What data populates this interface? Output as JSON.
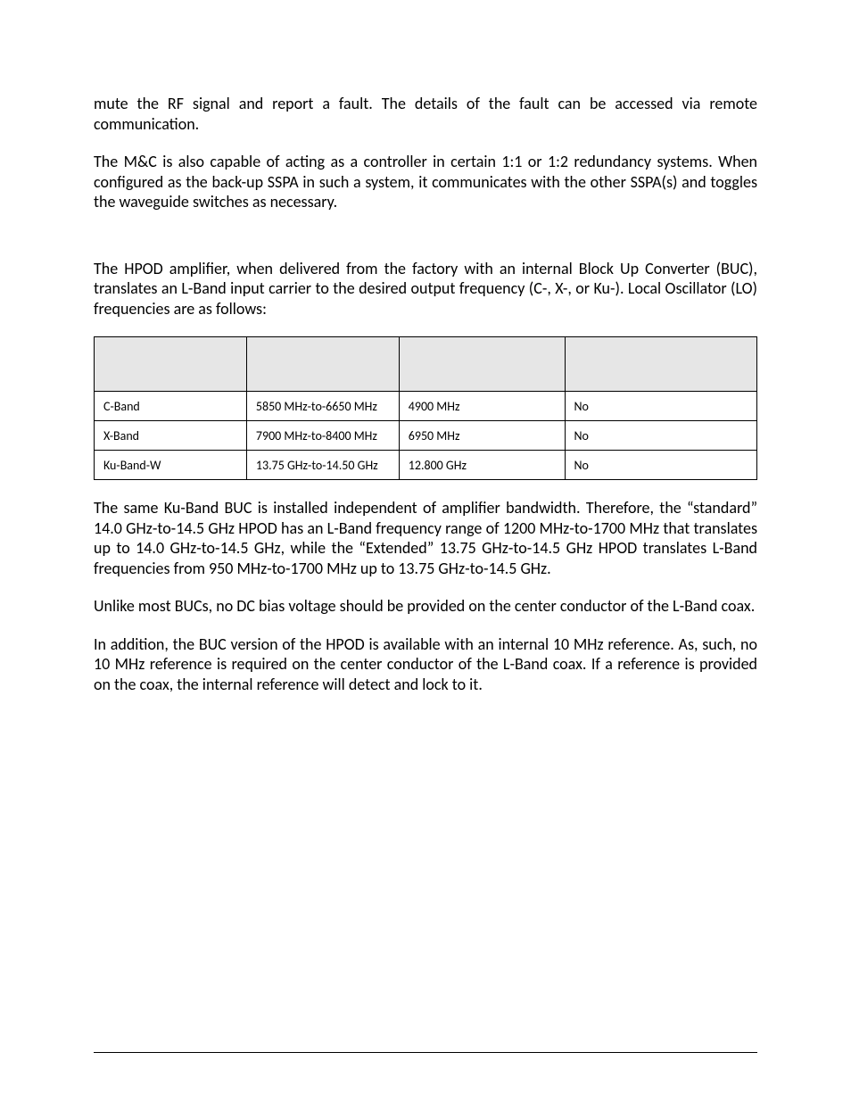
{
  "paragraphs": {
    "p1": "mute the RF signal and report a fault. The details of the fault can be accessed via remote communication.",
    "p2": "The M&C is also capable of acting as a controller in certain 1:1 or 1:2 redundancy systems. When configured as the back-up SSPA in such a system, it communicates with the other SSPA(s) and toggles the waveguide switches as necessary.",
    "p3": "The HPOD amplifier, when delivered from the factory with an internal Block Up Converter (BUC), translates an L-Band input carrier to the desired output frequency (C-, X-, or Ku-). Local Oscillator (LO) frequencies are as follows:",
    "p4": "The same Ku-Band BUC is installed independent of amplifier bandwidth. Therefore, the “standard” 14.0 GHz-to-14.5 GHz HPOD has an L-Band frequency range of 1200 MHz-to-1700 MHz that translates up to 14.0 GHz-to-14.5 GHz, while the “Extended” 13.75 GHz-to-14.5 GHz HPOD translates L-Band frequencies from 950 MHz-to-1700 MHz up to 13.75 GHz-to-14.5 GHz.",
    "p5": "Unlike most BUCs, no DC bias voltage should be provided on the center conductor of the L-Band coax.",
    "p6": "In addition, the BUC version of the HPOD is available with an internal 10 MHz reference. As, such, no 10 MHz reference is required on the center conductor of the L-Band coax. If a reference is provided on the coax, the internal reference will detect and lock to it."
  },
  "table": {
    "type": "table",
    "header_background": "#e6e6e6",
    "border_color": "#000000",
    "columns": [
      "",
      "",
      "",
      ""
    ],
    "rows": [
      [
        "C-Band",
        "5850 MHz-to-6650 MHz",
        "4900 MHz",
        "No"
      ],
      [
        "X-Band",
        "7900 MHz-to-8400 MHz",
        "6950 MHz",
        "No"
      ],
      [
        "Ku-Band-W",
        "13.75 GHz-to-14.50 GHz",
        "12.800 GHz",
        "No"
      ]
    ]
  },
  "styling": {
    "page_bg": "#ffffff",
    "text_color": "#000000",
    "body_fontsize": 18,
    "table_fontsize": 14,
    "font_family": "Calibri"
  }
}
